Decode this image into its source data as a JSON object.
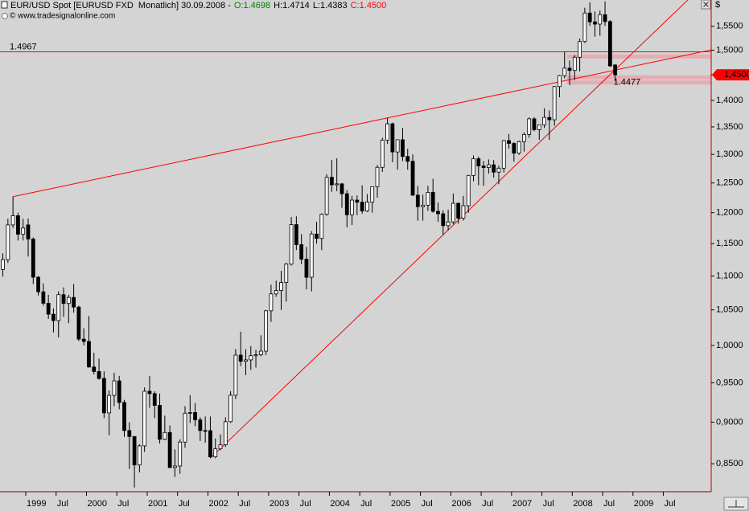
{
  "chart_data": {
    "type": "candlestick",
    "title": "EUR/USD Spot [EURUSD FXD  Monatlich] 30.09.2008 -",
    "ohlc_labels": [
      "O:1.4698",
      "H:1.4714",
      "L:1.4383",
      "C:1.4500"
    ],
    "ohlc_colors": [
      "#008000",
      "#000000",
      "#000000",
      "#ff0000"
    ],
    "source": "© www.tradesignalonline.com",
    "currency": "$",
    "categories": [
      null,
      null,
      null,
      null,
      null,
      "1999",
      null,
      null,
      null,
      null,
      null,
      "Jul",
      null,
      null,
      null,
      null,
      null,
      "2000",
      null,
      null,
      null,
      null,
      null,
      "Jul",
      null,
      null,
      null,
      null,
      null,
      "2001",
      null,
      null,
      null,
      null,
      null,
      "Jul",
      null,
      null,
      null,
      null,
      null,
      "2002",
      null,
      null,
      null,
      null,
      null,
      "Jul",
      null,
      null,
      null,
      null,
      null,
      "2003",
      null,
      null,
      null,
      null,
      null,
      "Jul",
      null,
      null,
      null,
      null,
      null,
      "2004",
      null,
      null,
      null,
      null,
      null,
      "Jul",
      null,
      null,
      null,
      null,
      null,
      "2005",
      null,
      null,
      null,
      null,
      null,
      "Jul",
      null,
      null,
      null,
      null,
      null,
      "2006",
      null,
      null,
      null,
      null,
      null,
      "Jul",
      null,
      null,
      null,
      null,
      null,
      "2007",
      null,
      null,
      null,
      null,
      null,
      "Jul",
      null,
      null,
      null,
      null,
      null,
      "2008",
      null,
      null,
      null,
      null,
      null,
      "Jul",
      null,
      null,
      null,
      null,
      null,
      "2009",
      null,
      null,
      null,
      null,
      null,
      "Jul"
    ],
    "open": [
      1.11,
      1.125,
      1.18,
      1.195,
      1.165,
      1.18,
      1.1573,
      1.0982,
      1.0764,
      1.0596,
      1.0438,
      1.0347,
      1.0722,
      1.0593,
      1.0682,
      1.0541,
      1.0087,
      1.0055,
      0.9708,
      0.9648,
      0.9557,
      0.9115,
      0.9337,
      0.9525,
      0.9247,
      0.8897,
      0.8824,
      0.8486,
      0.8712,
      0.939,
      0.936,
      0.921,
      0.8791,
      0.8873,
      0.8456,
      0.8474,
      0.8757,
      0.9111,
      0.912,
      0.9028,
      0.8897,
      0.8896,
      0.8581,
      0.8676,
      0.8724,
      0.9006,
      0.9339,
      0.9868,
      0.9785,
      0.9803,
      0.986,
      0.9872,
      0.9922,
      1.0487,
      1.0733,
      1.0783,
      1.0903,
      1.1181,
      1.1805,
      1.1484,
      1.1257,
      1.0981,
      1.1653,
      1.1583,
      1.1972,
      1.2597,
      1.2468,
      1.2484,
      1.2316,
      1.1965,
      1.2209,
      1.2174,
      1.2027,
      1.2175,
      1.2436,
      1.2771,
      1.3258,
      1.3558,
      1.3043,
      1.3264,
      1.2963,
      1.2877,
      1.2292,
      1.2099,
      1.2124,
      1.2339,
      1.2022,
      1.1982,
      1.1788,
      1.1849,
      1.2155,
      1.191,
      1.2115,
      1.263,
      1.2922,
      1.2794,
      1.2767,
      1.2815,
      1.2687,
      1.2756,
      1.3248,
      1.3197,
      1.3022,
      1.3229,
      1.336,
      1.365,
      1.3448,
      1.3538,
      1.3676,
      1.3633,
      1.4268,
      1.4485,
      1.4634,
      1.4588,
      1.4855,
      1.5178,
      1.5785,
      1.5595,
      1.5547,
      1.575,
      1.5602,
      1.4698,
      null,
      null,
      null,
      null,
      null,
      null,
      null,
      null,
      null,
      null
    ],
    "high": [
      1.135,
      1.19,
      1.2267,
      1.2,
      1.19,
      1.1904,
      1.16,
      1.1,
      1.089,
      1.072,
      1.052,
      1.077,
      1.083,
      1.072,
      1.088,
      1.056,
      1.024,
      1.041,
      0.99,
      0.982,
      0.965,
      0.94,
      0.963,
      0.959,
      0.928,
      0.9,
      0.883,
      0.873,
      0.944,
      0.959,
      0.939,
      0.936,
      0.908,
      0.896,
      0.867,
      0.879,
      0.92,
      0.934,
      0.924,
      0.906,
      0.907,
      0.907,
      0.88,
      0.885,
      0.906,
      0.939,
      0.995,
      1.019,
      0.995,
      0.999,
      0.994,
      1.014,
      1.05,
      1.087,
      1.093,
      1.108,
      1.12,
      1.193,
      1.194,
      1.165,
      1.145,
      1.17,
      1.185,
      1.199,
      1.265,
      1.29,
      1.293,
      1.25,
      1.238,
      1.228,
      1.229,
      1.246,
      1.231,
      1.244,
      1.281,
      1.33,
      1.3667,
      1.358,
      1.327,
      1.348,
      1.31,
      1.3,
      1.245,
      1.23,
      1.245,
      1.257,
      1.217,
      1.204,
      1.205,
      1.232,
      1.217,
      1.228,
      1.264,
      1.298,
      1.296,
      1.288,
      1.291,
      1.29,
      1.28,
      1.326,
      1.337,
      1.322,
      1.325,
      1.34,
      1.368,
      1.368,
      1.354,
      1.385,
      1.381,
      1.428,
      1.45,
      1.497,
      1.479,
      1.49,
      1.524,
      1.59,
      1.6019,
      1.582,
      1.584,
      1.6038,
      1.563,
      1.4714,
      null,
      null,
      null,
      null,
      null,
      null,
      null,
      null,
      null,
      null
    ],
    "low": [
      1.099,
      1.12,
      1.175,
      1.155,
      1.155,
      1.1298,
      1.088,
      1.071,
      1.056,
      1.037,
      1.018,
      1.011,
      1.04,
      1.031,
      1.046,
      1.006,
      1.0,
      0.97,
      0.961,
      0.954,
      0.905,
      0.884,
      0.92,
      0.916,
      0.882,
      0.844,
      0.8228,
      0.84,
      0.864,
      0.918,
      0.905,
      0.874,
      0.878,
      0.845,
      0.8348,
      0.8384,
      0.869,
      0.899,
      0.895,
      0.877,
      0.875,
      0.8565,
      0.8565,
      0.866,
      0.87,
      0.899,
      0.929,
      0.972,
      0.96,
      0.967,
      0.97,
      0.985,
      0.987,
      1.033,
      1.069,
      1.05,
      1.062,
      1.116,
      1.14,
      1.118,
      1.08,
      1.077,
      1.15,
      1.14,
      1.195,
      1.235,
      1.236,
      1.208,
      1.176,
      1.18,
      1.196,
      1.198,
      1.201,
      1.2,
      1.225,
      1.269,
      1.319,
      1.286,
      1.273,
      1.288,
      1.273,
      1.228,
      1.187,
      1.187,
      1.203,
      1.2,
      1.185,
      1.164,
      1.171,
      1.181,
      1.182,
      1.187,
      1.2,
      1.253,
      1.246,
      1.245,
      1.266,
      1.259,
      1.248,
      1.268,
      1.31,
      1.287,
      1.299,
      1.305,
      1.33,
      1.342,
      1.326,
      1.348,
      1.326,
      1.352,
      1.406,
      1.443,
      1.43,
      1.44,
      1.457,
      1.515,
      1.551,
      1.528,
      1.53,
      1.551,
      1.466,
      1.4383,
      null,
      null,
      null,
      null,
      null,
      null,
      null,
      null,
      null,
      null
    ],
    "close": [
      1.125,
      1.18,
      1.195,
      1.165,
      1.175,
      1.1573,
      1.0982,
      1.0764,
      1.0596,
      1.0438,
      1.0347,
      1.0722,
      1.0593,
      1.0682,
      1.0541,
      1.0087,
      1.0055,
      0.9708,
      0.9648,
      0.9557,
      0.9115,
      0.9337,
      0.9525,
      0.9247,
      0.8897,
      0.8824,
      0.8486,
      0.8712,
      0.939,
      0.936,
      0.921,
      0.8791,
      0.8873,
      0.8456,
      0.8474,
      0.8757,
      0.9111,
      0.912,
      0.9028,
      0.8897,
      0.8896,
      0.8581,
      0.8676,
      0.8724,
      0.9006,
      0.9339,
      0.9868,
      0.9785,
      0.9803,
      0.986,
      0.9872,
      0.9922,
      1.0487,
      1.0733,
      1.0783,
      1.0903,
      1.1181,
      1.1805,
      1.1484,
      1.1257,
      1.0981,
      1.1653,
      1.1583,
      1.1972,
      1.2597,
      1.2468,
      1.2484,
      1.2316,
      1.1965,
      1.2209,
      1.2174,
      1.2027,
      1.2175,
      1.2436,
      1.2771,
      1.3258,
      1.3558,
      1.3043,
      1.3264,
      1.2963,
      1.2877,
      1.2292,
      1.2099,
      1.2124,
      1.2339,
      1.2022,
      1.1982,
      1.1788,
      1.1849,
      1.2155,
      1.191,
      1.2115,
      1.263,
      1.2922,
      1.2794,
      1.2767,
      1.2815,
      1.2687,
      1.2756,
      1.3248,
      1.3197,
      1.3022,
      1.3229,
      1.336,
      1.365,
      1.3448,
      1.3538,
      1.3676,
      1.3633,
      1.4268,
      1.4485,
      1.4634,
      1.4588,
      1.4855,
      1.5178,
      1.5785,
      1.5595,
      1.5547,
      1.575,
      1.5602,
      1.4679,
      1.45,
      null,
      null,
      null,
      null,
      null,
      null,
      null,
      null,
      null,
      null
    ],
    "up_color": "#ffffff",
    "down_color": "#000000",
    "line_color": "#ff0000",
    "band_color": "#e8a4ae",
    "ylim": [
      0.818,
      1.607
    ],
    "log_scale": true,
    "grid": false,
    "yticks": [
      {
        "value": 0.85,
        "label": "0,8500"
      },
      {
        "value": 0.9,
        "label": "0,9000"
      },
      {
        "value": 0.95,
        "label": "0,9500"
      },
      {
        "value": 1.0,
        "label": "1,0000"
      },
      {
        "value": 1.05,
        "label": "1,0500"
      },
      {
        "value": 1.1,
        "label": "1,1000"
      },
      {
        "value": 1.15,
        "label": "1,1500"
      },
      {
        "value": 1.2,
        "label": "1,2000"
      },
      {
        "value": 1.25,
        "label": "1,2500"
      },
      {
        "value": 1.3,
        "label": "1,3000"
      },
      {
        "value": 1.35,
        "label": "1,3500"
      },
      {
        "value": 1.4,
        "label": "1,4000"
      },
      {
        "value": 1.45,
        "label": "1,4500"
      },
      {
        "value": 1.5,
        "label": "1,5000"
      },
      {
        "value": 1.55,
        "label": "1,5500"
      }
    ],
    "last_price": {
      "value": 1.45,
      "label": "1,4500"
    },
    "levels": [
      {
        "value": 1.4967,
        "label": "1.4967"
      }
    ],
    "annotations": [
      {
        "value": 1.4477,
        "label": "1.4477"
      }
    ],
    "bands": [
      1.487,
      1.445,
      1.435
    ],
    "trendlines": [
      {
        "values": [
          1.2267,
          1.3667
        ]
      },
      {
        "values": [
          0.8565,
          1.164
        ]
      }
    ]
  }
}
